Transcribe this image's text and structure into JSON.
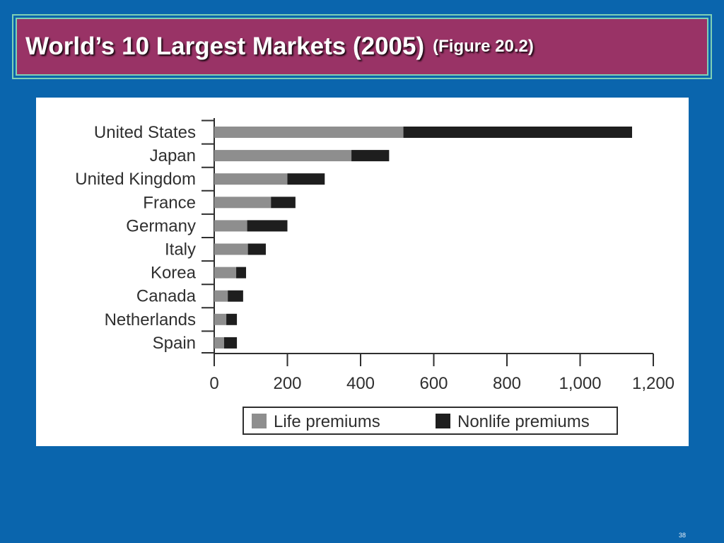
{
  "slide": {
    "title": "World’s 10 Largest Markets (2005)",
    "figure_ref": "(Figure 20.2)",
    "page_number": "38"
  },
  "colors": {
    "background": "#0a65ad",
    "title_bar": "#993366",
    "title_border": "#7fd0b4",
    "panel": "#ffffff",
    "life": "#8e8e8e",
    "nonlife": "#1e1e1e",
    "text": "#2f2f2f"
  },
  "chart_data": {
    "type": "bar",
    "orientation": "horizontal",
    "stacked": true,
    "categories": [
      "United States",
      "Japan",
      "United Kingdom",
      "France",
      "Germany",
      "Italy",
      "Korea",
      "Canada",
      "Netherlands",
      "Spain"
    ],
    "series": [
      {
        "name": "Life premiums",
        "values": [
          517,
          375,
          200,
          155,
          90,
          92,
          60,
          37,
          33,
          27
        ]
      },
      {
        "name": "Nonlife premiums",
        "values": [
          625,
          103,
          102,
          67,
          110,
          49,
          27,
          42,
          29,
          35
        ]
      }
    ],
    "x_ticks": [
      0,
      200,
      400,
      600,
      800,
      1000,
      1200
    ],
    "x_tick_labels": [
      "0",
      "200",
      "400",
      "600",
      "800",
      "1,000",
      "1,200"
    ],
    "xlim": [
      0,
      1200
    ],
    "grid": false,
    "legend": "bottom"
  }
}
